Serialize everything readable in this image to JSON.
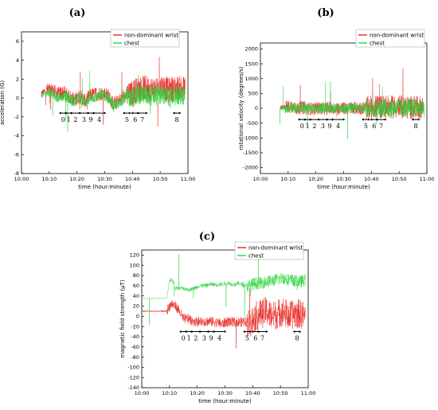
{
  "chart_data": [
    {
      "panel_label": "(a)",
      "type": "line",
      "xlabel": "time (hour:minute)",
      "ylabel": "acceleration (G)",
      "x_ticks": [
        "10:00",
        "10:10",
        "10:20",
        "10:30",
        "10:40",
        "10:50",
        "11:00"
      ],
      "y_ticks": [
        -8,
        -6,
        -4,
        -2,
        0,
        2,
        4,
        6
      ],
      "ylim": [
        -8,
        7
      ],
      "xlim_minutes": [
        0,
        60
      ],
      "legend_position": "top-right",
      "series": [
        {
          "name": "non-dominant wrist",
          "color": "#e8231f",
          "x_minutes": [
            7,
            9,
            11,
            13,
            15,
            17,
            19,
            21,
            23,
            25,
            27,
            29,
            31,
            33,
            35,
            37,
            39,
            41,
            43,
            45,
            47,
            49,
            51,
            53,
            55,
            57,
            59
          ],
          "values": [
            0.5,
            0.8,
            0.9,
            0.4,
            0.6,
            0.2,
            -0.2,
            0.2,
            -0.3,
            0.3,
            0.4,
            0.5,
            0.4,
            -0.6,
            -0.4,
            0.2,
            0.3,
            0.8,
            1.0,
            1.1,
            0.9,
            1.0,
            1.2,
            0.8,
            1.0,
            1.0,
            1.0
          ]
        },
        {
          "name": "chest",
          "color": "#29d43a",
          "x_minutes": [
            7,
            9,
            11,
            13,
            15,
            17,
            19,
            21,
            23,
            25,
            27,
            29,
            31,
            33,
            35,
            37,
            39,
            41,
            43,
            45,
            47,
            49,
            51,
            53,
            55,
            57,
            59
          ],
          "values": [
            0.1,
            0.6,
            0.4,
            0.0,
            0.3,
            0.0,
            -0.4,
            0.0,
            -0.5,
            0.0,
            0.1,
            0.3,
            0.1,
            -0.8,
            -0.6,
            0.0,
            0.1,
            0.2,
            0.4,
            0.3,
            0.2,
            0.3,
            0.3,
            0.0,
            0.2,
            0.3,
            0.3
          ]
        }
      ],
      "segments": {
        "labels": [
          "0",
          "1",
          "2",
          "3",
          "9",
          "4",
          "5",
          "6",
          "7",
          "8"
        ],
        "ranges_minutes": [
          [
            14,
            16
          ],
          [
            16,
            18
          ],
          [
            18,
            21
          ],
          [
            21,
            24
          ],
          [
            24,
            26
          ],
          [
            26,
            30
          ],
          [
            37,
            39
          ],
          [
            40,
            42
          ],
          [
            42,
            45
          ],
          [
            55,
            57
          ]
        ]
      }
    },
    {
      "panel_label": "(b)",
      "type": "line",
      "xlabel": "time (hour:minute)",
      "ylabel": "rotational velocity (degrees/s)",
      "x_ticks": [
        "10:00",
        "10:10",
        "10:20",
        "10:30",
        "10:40",
        "10:50",
        "11:00"
      ],
      "y_ticks": [
        -2000,
        -1500,
        -1000,
        -500,
        0,
        500,
        1000,
        1500,
        2000
      ],
      "ylim": [
        -2200,
        2200
      ],
      "xlim_minutes": [
        0,
        60
      ],
      "legend_position": "top-right",
      "series": [
        {
          "name": "non-dominant wrist",
          "color": "#e8231f",
          "x_minutes": [
            7,
            9,
            11,
            13,
            15,
            17,
            19,
            21,
            23,
            25,
            27,
            29,
            31,
            33,
            35,
            37,
            39,
            41,
            43,
            45,
            47,
            49,
            51,
            53,
            55,
            57,
            59
          ],
          "values": [
            0,
            40,
            60,
            -20,
            30,
            0,
            -20,
            10,
            -10,
            20,
            10,
            0,
            -10,
            20,
            0,
            10,
            20,
            60,
            40,
            50,
            30,
            40,
            50,
            20,
            30,
            20,
            30
          ]
        },
        {
          "name": "chest",
          "color": "#29d43a",
          "x_minutes": [
            7,
            9,
            11,
            13,
            15,
            17,
            19,
            21,
            23,
            25,
            27,
            29,
            31,
            33,
            35,
            37,
            39,
            41,
            43,
            45,
            47,
            49,
            51,
            53,
            55,
            57,
            59
          ],
          "values": [
            0,
            20,
            30,
            -10,
            10,
            0,
            -10,
            0,
            0,
            10,
            0,
            0,
            0,
            10,
            0,
            0,
            10,
            20,
            10,
            20,
            10,
            10,
            20,
            10,
            10,
            10,
            10
          ]
        }
      ],
      "segments": {
        "labels": [
          "0",
          "1",
          "2",
          "3",
          "9",
          "4",
          "5",
          "6",
          "7",
          "8"
        ],
        "ranges_minutes": [
          [
            14,
            16
          ],
          [
            16,
            18
          ],
          [
            18,
            21
          ],
          [
            21,
            24
          ],
          [
            24,
            26
          ],
          [
            26,
            30
          ],
          [
            37,
            39
          ],
          [
            40,
            42
          ],
          [
            42,
            45
          ],
          [
            55,
            57
          ]
        ]
      }
    },
    {
      "panel_label": "(c)",
      "type": "line",
      "xlabel": "time (hour:minute)",
      "ylabel": "magnetic field strength (μT)",
      "x_ticks": [
        "10:00",
        "10:10",
        "10:20",
        "10:30",
        "10:40",
        "10:50",
        "11:00"
      ],
      "y_ticks": [
        -140,
        -120,
        -100,
        -80,
        -60,
        -40,
        -20,
        0,
        20,
        40,
        60,
        80,
        100,
        120
      ],
      "ylim": [
        -140,
        130
      ],
      "xlim_minutes": [
        0,
        60
      ],
      "legend_position": "top-right",
      "series": [
        {
          "name": "non-dominant wrist",
          "color": "#e8231f",
          "x_minutes": [
            0,
            5,
            9,
            10,
            11,
            12,
            13,
            15,
            17,
            19,
            21,
            23,
            25,
            27,
            29,
            31,
            33,
            35,
            37,
            39,
            41,
            43,
            45,
            47,
            49,
            51,
            53,
            55,
            57,
            59
          ],
          "values": [
            10,
            10,
            10,
            20,
            25,
            20,
            15,
            -5,
            -5,
            -10,
            -10,
            -10,
            -10,
            -12,
            -15,
            -10,
            -12,
            -12,
            -10,
            -15,
            0,
            5,
            10,
            0,
            5,
            10,
            0,
            5,
            5,
            0
          ]
        },
        {
          "name": "chest",
          "color": "#29d43a",
          "x_minutes": [
            0,
            5,
            9,
            10,
            11,
            12,
            13,
            15,
            17,
            19,
            21,
            23,
            25,
            27,
            29,
            31,
            33,
            35,
            37,
            39,
            41,
            43,
            45,
            47,
            49,
            51,
            53,
            55,
            57,
            59
          ],
          "values": [
            35,
            35,
            35,
            70,
            72,
            55,
            55,
            55,
            52,
            55,
            60,
            60,
            63,
            62,
            63,
            65,
            62,
            65,
            60,
            60,
            65,
            65,
            68,
            70,
            72,
            75,
            72,
            70,
            68,
            70
          ]
        }
      ],
      "segments": {
        "labels": [
          "0",
          "1",
          "2",
          "3",
          "9",
          "4",
          "5",
          "6",
          "7",
          "8"
        ],
        "ranges_minutes": [
          [
            14,
            16
          ],
          [
            16,
            18
          ],
          [
            18,
            21
          ],
          [
            21,
            24
          ],
          [
            24,
            26
          ],
          [
            26,
            30
          ],
          [
            37,
            39
          ],
          [
            40,
            42
          ],
          [
            42,
            45
          ],
          [
            55,
            57
          ]
        ]
      }
    }
  ]
}
